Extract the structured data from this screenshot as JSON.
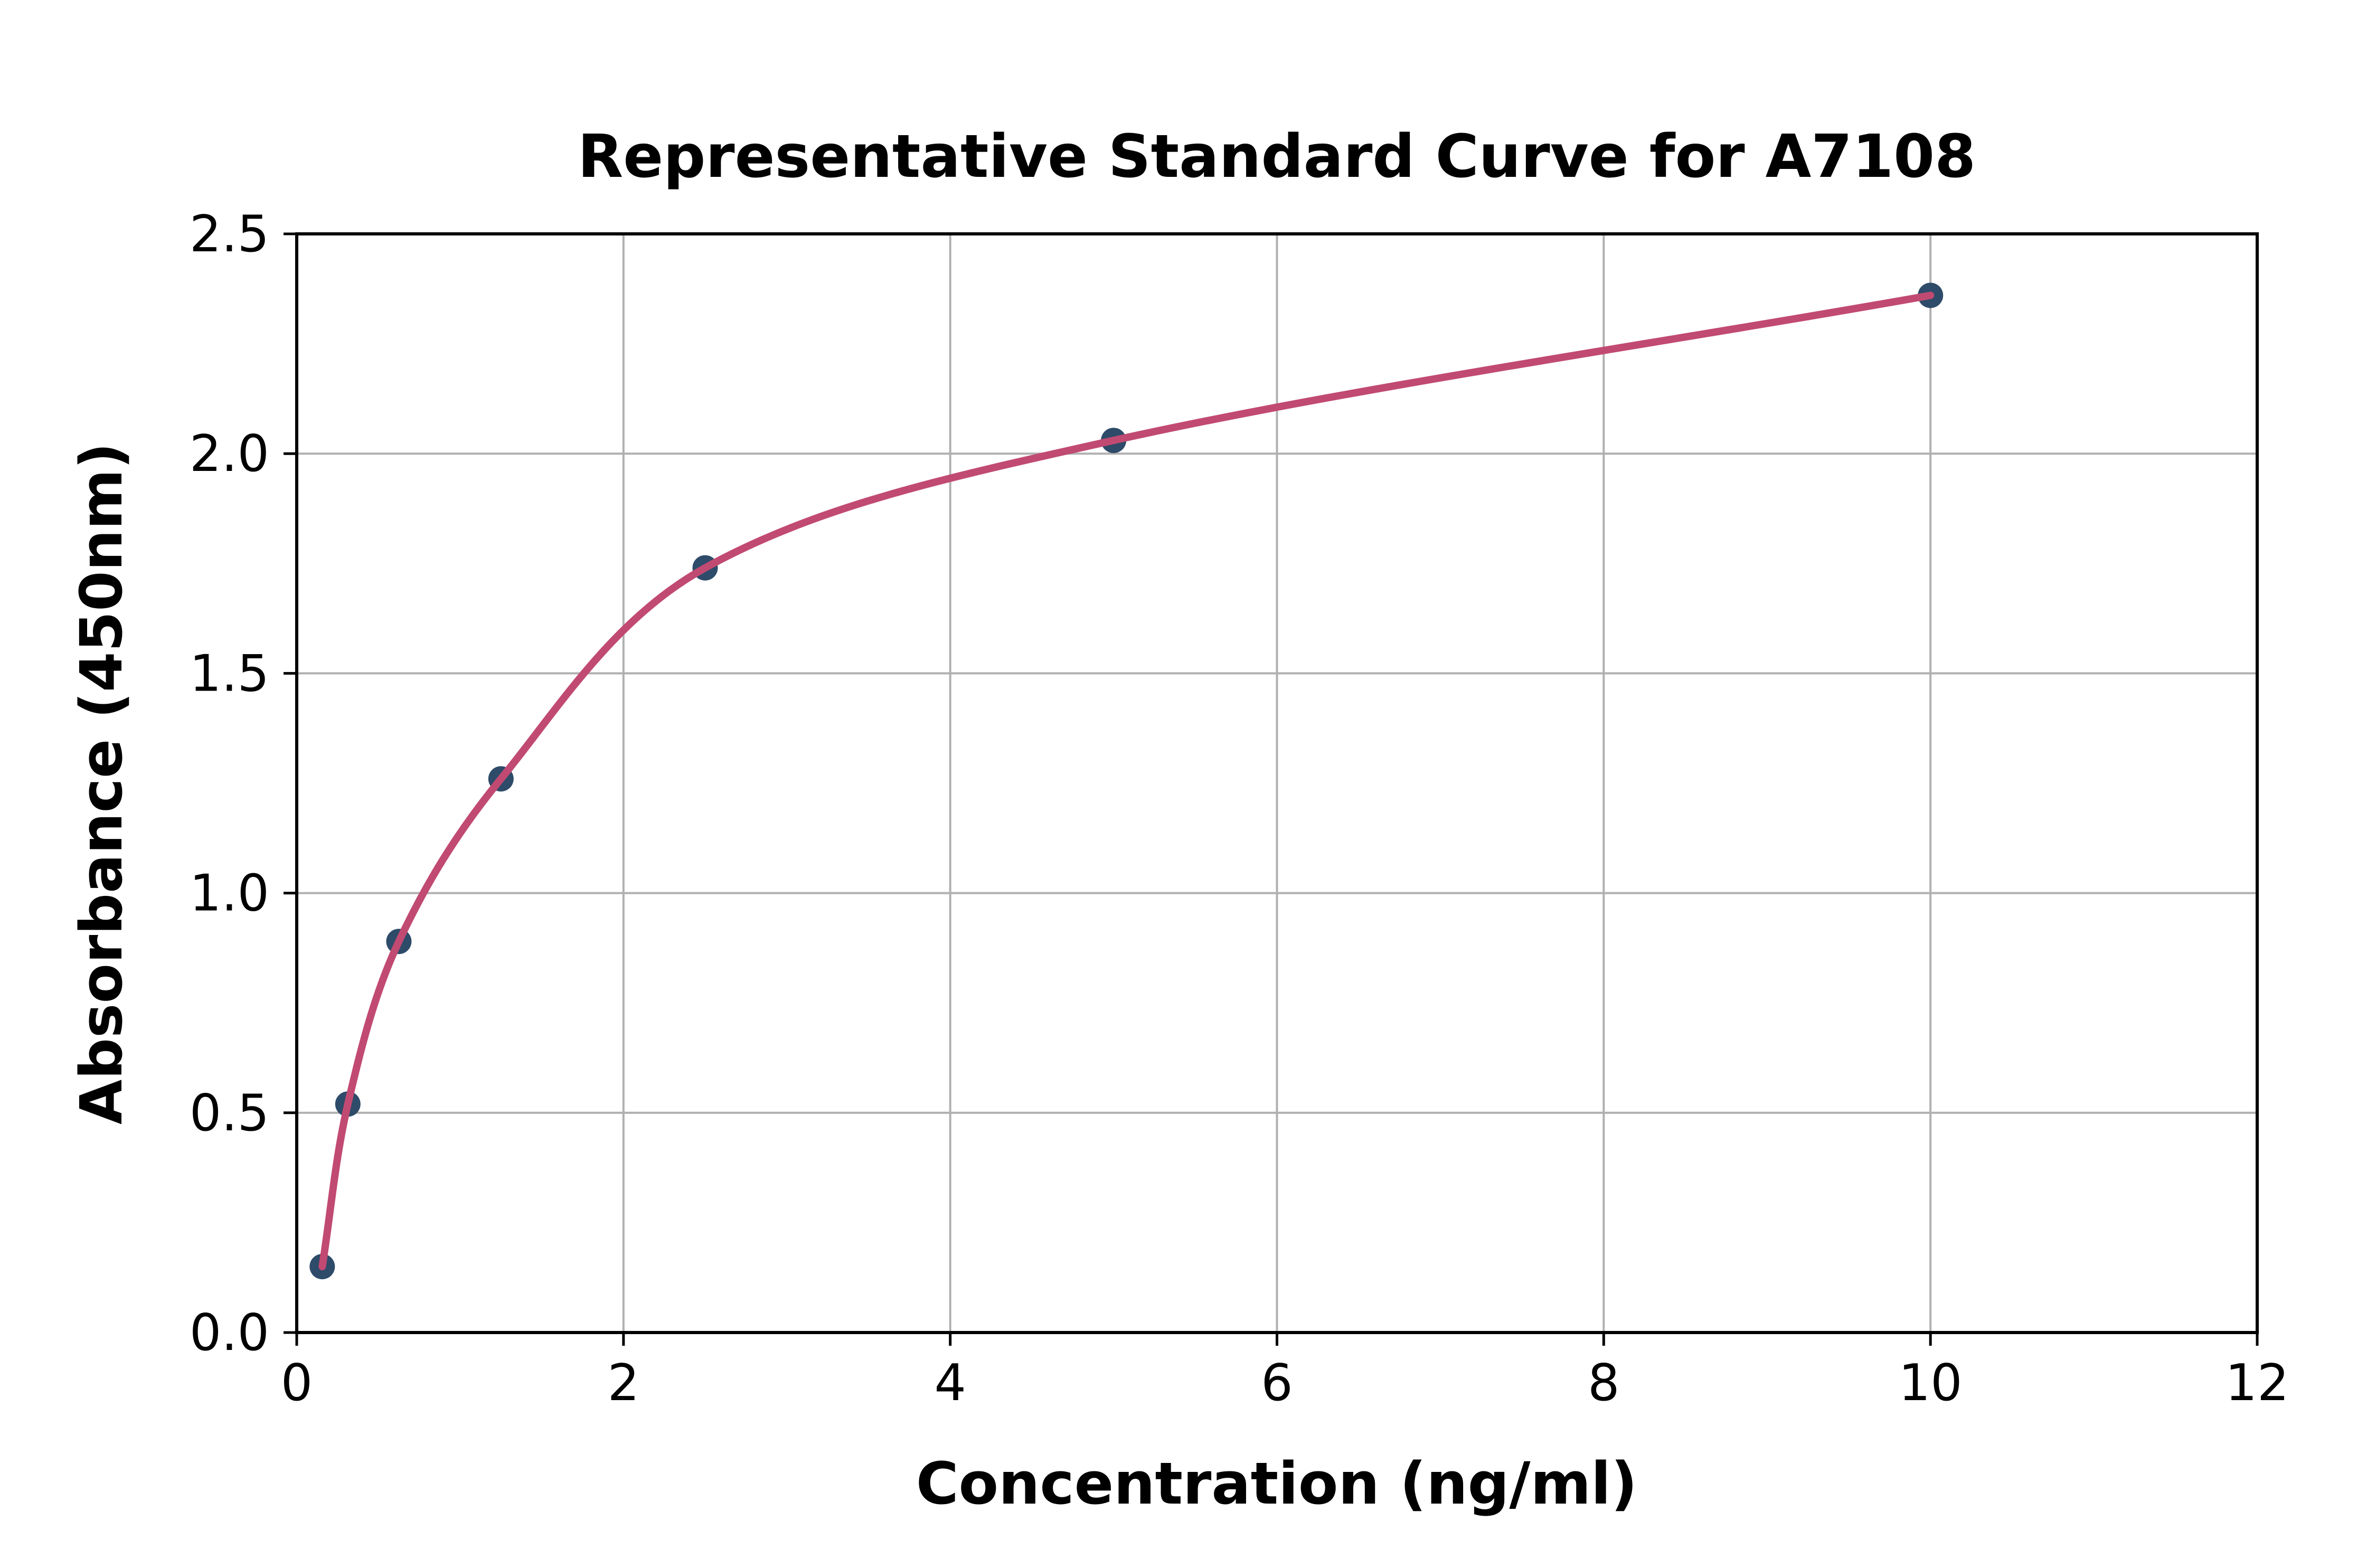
{
  "figure": {
    "background_color": "#ffffff"
  },
  "chart_data": {
    "type": "scatter",
    "title": "Representative Standard Curve for A7108",
    "xlabel": "Concentration (ng/ml)",
    "ylabel": "Absorbance (450nm)",
    "xlim": [
      0,
      12
    ],
    "ylim": [
      0,
      2.5
    ],
    "x_ticks": [
      "0",
      "2",
      "4",
      "6",
      "8",
      "10",
      "12"
    ],
    "x_tick_values": [
      0,
      2,
      4,
      6,
      8,
      10,
      12
    ],
    "y_ticks": [
      "0.0",
      "0.5",
      "1.0",
      "1.5",
      "2.0",
      "2.5"
    ],
    "y_tick_values": [
      0,
      0.5,
      1.0,
      1.5,
      2.0,
      2.5
    ],
    "grid": true,
    "legend_position": "none",
    "series": [
      {
        "name": "standard-points",
        "plot_style": "scatter",
        "marker": "circle",
        "color": "#2e4b69",
        "x": [
          0.156,
          0.313,
          0.625,
          1.25,
          2.5,
          5,
          10
        ],
        "y": [
          0.15,
          0.52,
          0.89,
          1.26,
          1.74,
          2.03,
          2.36
        ]
      },
      {
        "name": "fit-curve",
        "plot_style": "line",
        "color": "#c14a72",
        "x": [
          0.156,
          0.313,
          0.625,
          1.25,
          2.5,
          5,
          10
        ],
        "y": [
          0.15,
          0.52,
          0.89,
          1.26,
          1.74,
          2.03,
          2.36
        ]
      }
    ],
    "colors": {
      "marker": "#2e4b69",
      "curve": "#c14a72",
      "grid": "#b0b0b0",
      "spine": "#000000",
      "text": "#000000"
    }
  }
}
